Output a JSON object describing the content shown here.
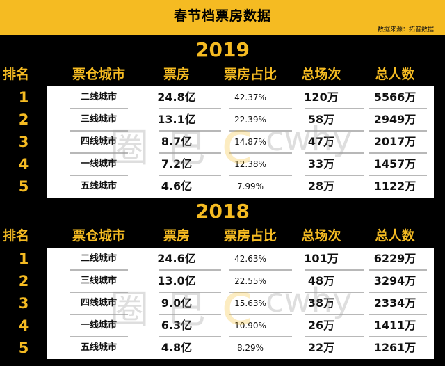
{
  "header": {
    "title": "春节档票房数据",
    "source": "数据来源：拓普数据"
  },
  "columns": [
    "排名",
    "票仓城市",
    "票房",
    "票房占比",
    "总场次",
    "总人数"
  ],
  "watermark": {
    "text1": "圈",
    "text2": "巴",
    "text3": "c",
    "text4": "cwhy"
  },
  "colors": {
    "accent": "#f5bb22",
    "background": "#000000",
    "panel": "#ffffff"
  },
  "chart_data": [
    {
      "type": "table",
      "title": "2019",
      "columns": [
        "排名",
        "票仓城市",
        "票房",
        "票房占比",
        "总场次",
        "总人数"
      ],
      "rows": [
        [
          "1",
          "二线城市",
          "24.8亿",
          "42.37%",
          "120万",
          "5566万"
        ],
        [
          "2",
          "三线城市",
          "13.1亿",
          "22.39%",
          "58万",
          "2949万"
        ],
        [
          "3",
          "四线城市",
          "8.7亿",
          "14.87%",
          "47万",
          "2017万"
        ],
        [
          "4",
          "一线城市",
          "7.2亿",
          "12.38%",
          "33万",
          "1457万"
        ],
        [
          "5",
          "五线城市",
          "4.6亿",
          "7.99%",
          "28万",
          "1122万"
        ]
      ]
    },
    {
      "type": "table",
      "title": "2018",
      "columns": [
        "排名",
        "票仓城市",
        "票房",
        "票房占比",
        "总场次",
        "总人数"
      ],
      "rows": [
        [
          "1",
          "二线城市",
          "24.6亿",
          "42.63%",
          "101万",
          "6229万"
        ],
        [
          "2",
          "三线城市",
          "13.0亿",
          "22.55%",
          "48万",
          "3294万"
        ],
        [
          "3",
          "四线城市",
          "9.0亿",
          "15.63%",
          "38万",
          "2334万"
        ],
        [
          "4",
          "一线城市",
          "6.3亿",
          "10.90%",
          "26万",
          "1411万"
        ],
        [
          "5",
          "五线城市",
          "4.8亿",
          "8.29%",
          "22万",
          "1261万"
        ]
      ]
    }
  ]
}
